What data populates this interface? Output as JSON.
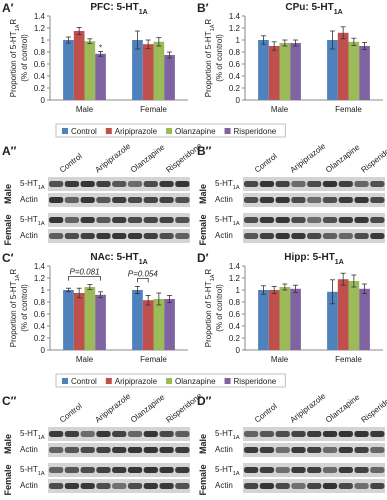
{
  "chart_data": [
    {
      "type": "bar",
      "panel": "A′",
      "title": "PFC: 5-HT",
      "title_sub": "1A",
      "ylabel": "Proportion of 5-HT",
      "ylabel_sub": "1A",
      "ylabel_tail": "R",
      "ylabel_line2": "(% of control)",
      "categories": [
        "Male",
        "Female"
      ],
      "series": [
        {
          "name": "Control",
          "color": "#4f81bd",
          "values": [
            1.0,
            1.0
          ],
          "errors": [
            0.05,
            0.15
          ]
        },
        {
          "name": "Aripiprazole",
          "color": "#c0504d",
          "values": [
            1.15,
            0.93
          ],
          "errors": [
            0.06,
            0.07
          ]
        },
        {
          "name": "Olanzapine",
          "color": "#9bbb59",
          "values": [
            0.98,
            0.97
          ],
          "errors": [
            0.04,
            0.07
          ]
        },
        {
          "name": "Risperidone",
          "color": "#8064a2",
          "values": [
            0.77,
            0.75
          ],
          "errors": [
            0.04,
            0.05
          ]
        }
      ],
      "ylim": [
        0,
        1.4
      ],
      "yticks": [
        0,
        0.2,
        0.4,
        0.6,
        0.8,
        1,
        1.2,
        1.4
      ],
      "legend": true,
      "annotations": [
        {
          "text": "*",
          "category": 0,
          "from": 3,
          "to": 3
        }
      ]
    },
    {
      "type": "bar",
      "panel": "B′",
      "title": "CPu: 5-HT",
      "title_sub": "1A",
      "ylabel": "Proportion of 5-HT",
      "ylabel_sub": "1A",
      "ylabel_tail": "R",
      "ylabel_line2": "(% of control)",
      "categories": [
        "Male",
        "Female"
      ],
      "series": [
        {
          "name": "Control",
          "color": "#4f81bd",
          "values": [
            1.0,
            1.0
          ],
          "errors": [
            0.07,
            0.15
          ]
        },
        {
          "name": "Aripiprazole",
          "color": "#c0504d",
          "values": [
            0.9,
            1.12
          ],
          "errors": [
            0.07,
            0.1
          ]
        },
        {
          "name": "Olanzapine",
          "color": "#9bbb59",
          "values": [
            0.95,
            0.97
          ],
          "errors": [
            0.05,
            0.06
          ]
        },
        {
          "name": "Risperidone",
          "color": "#8064a2",
          "values": [
            0.95,
            0.9
          ],
          "errors": [
            0.05,
            0.06
          ]
        }
      ],
      "ylim": [
        0,
        1.4
      ],
      "yticks": [
        0,
        0.2,
        0.4,
        0.6,
        0.8,
        1,
        1.2,
        1.4
      ],
      "legend": false,
      "annotations": []
    },
    {
      "type": "bar",
      "panel": "C′",
      "title": "NAc: 5-HT",
      "title_sub": "1A",
      "ylabel": "Proportion of 5-HT",
      "ylabel_sub": "1A",
      "ylabel_tail": "R",
      "ylabel_line2": "(% of control)",
      "categories": [
        "Male",
        "Female"
      ],
      "series": [
        {
          "name": "Control",
          "color": "#4f81bd",
          "values": [
            1.0,
            1.0
          ],
          "errors": [
            0.03,
            0.06
          ]
        },
        {
          "name": "Aripiprazole",
          "color": "#c0504d",
          "values": [
            0.95,
            0.83
          ],
          "errors": [
            0.08,
            0.08
          ]
        },
        {
          "name": "Olanzapine",
          "color": "#9bbb59",
          "values": [
            1.05,
            0.85
          ],
          "errors": [
            0.04,
            0.1
          ]
        },
        {
          "name": "Risperidone",
          "color": "#8064a2",
          "values": [
            0.92,
            0.85
          ],
          "errors": [
            0.05,
            0.06
          ]
        }
      ],
      "ylim": [
        0,
        1.4
      ],
      "yticks": [
        0,
        0.2,
        0.4,
        0.6,
        0.8,
        1,
        1.2,
        1.4
      ],
      "legend": true,
      "annotations": [
        {
          "text": "P=0.081",
          "category": 0,
          "from": 0,
          "to": 3
        },
        {
          "text": "P=0.054",
          "category": 1,
          "from": 0,
          "to": 1
        }
      ]
    },
    {
      "type": "bar",
      "panel": "D′",
      "title": "Hipp: 5-HT",
      "title_sub": "1A",
      "ylabel": "Proportion of 5-HT",
      "ylabel_sub": "1A",
      "ylabel_tail": "R",
      "ylabel_line2": "(% of control)",
      "categories": [
        "Male",
        "Female"
      ],
      "series": [
        {
          "name": "Control",
          "color": "#4f81bd",
          "values": [
            1.0,
            0.97
          ],
          "errors": [
            0.07,
            0.2
          ]
        },
        {
          "name": "Aripiprazole",
          "color": "#c0504d",
          "values": [
            1.0,
            1.18
          ],
          "errors": [
            0.06,
            0.1
          ]
        },
        {
          "name": "Olanzapine",
          "color": "#9bbb59",
          "values": [
            1.05,
            1.15
          ],
          "errors": [
            0.05,
            0.1
          ]
        },
        {
          "name": "Risperidone",
          "color": "#8064a2",
          "values": [
            1.02,
            1.02
          ],
          "errors": [
            0.06,
            0.08
          ]
        }
      ],
      "ylim": [
        0,
        1.4
      ],
      "yticks": [
        0,
        0.2,
        0.4,
        0.6,
        0.8,
        1,
        1.2,
        1.4
      ],
      "legend": false,
      "annotations": []
    }
  ],
  "blots": [
    {
      "panel": "A″",
      "lanes": [
        "Control",
        "Aripiprazole",
        "Olanzapine",
        "Risperidone"
      ],
      "rows": [
        "Male",
        "Female"
      ],
      "target": "5-HT",
      "target_sub": "1A",
      "loading": "Actin"
    },
    {
      "panel": "B″",
      "lanes": [
        "Control",
        "Aripiprazole",
        "Olanzapine",
        "Risperidone"
      ],
      "rows": [
        "Male",
        "Female"
      ],
      "target": "5-HT",
      "target_sub": "1A",
      "loading": "Actin"
    },
    {
      "panel": "C″",
      "lanes": [
        "Control",
        "Aripiprazole",
        "Olanzapine",
        "Risperidone"
      ],
      "rows": [
        "Male",
        "Female"
      ],
      "target": "5-HT",
      "target_sub": "1A",
      "loading": "Actin"
    },
    {
      "panel": "D″",
      "lanes": [
        "Control",
        "Aripiprazole",
        "Olanzapine",
        "Risperidone"
      ],
      "rows": [
        "Male",
        "Female"
      ],
      "target": "5-HT",
      "target_sub": "1A",
      "loading": "Actin"
    }
  ]
}
